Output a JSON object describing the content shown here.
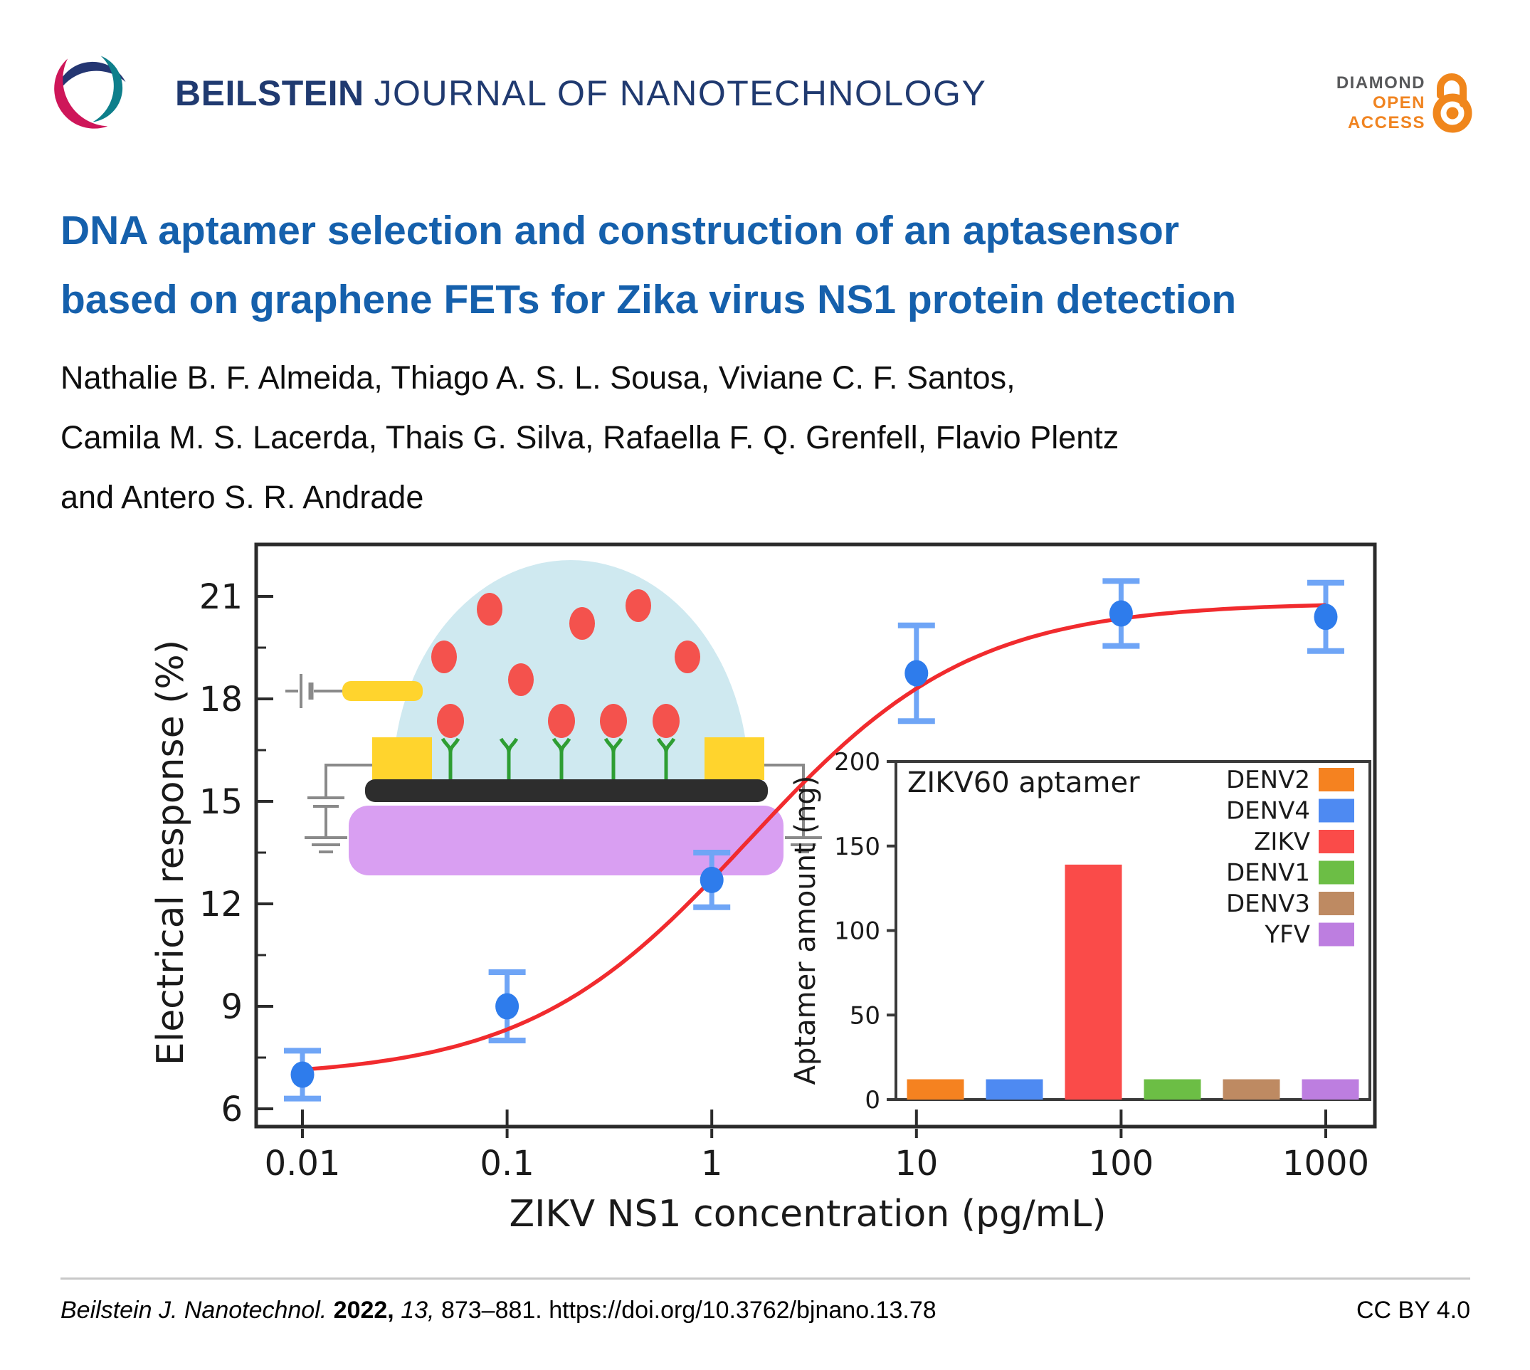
{
  "header": {
    "journal_name_bold": "BEILSTEIN",
    "journal_name_rest": "JOURNAL OF NANOTECHNOLOGY",
    "open_access_badge": {
      "line1": "DIAMOND",
      "line2": "OPEN",
      "line3": "ACCESS"
    }
  },
  "article": {
    "title_line1": "DNA aptamer selection and construction of an aptasensor",
    "title_line2": "based on graphene FETs for Zika virus NS1 protein detection",
    "authors": [
      "Nathalie B. F. Almeida, Thiago A. S. L. Sousa, Viviane C. F. Santos,",
      "Camila M. S. Lacerda, Thais G. Silva, Rafaella F. Q. Grenfell, Flavio Plentz",
      "and Antero S. R. Andrade"
    ]
  },
  "chart_data": [
    {
      "type": "scatter",
      "xlabel": "ZIKV NS1 concentration (pg/mL)",
      "ylabel": "Electrical response (%)",
      "x_scale": "log",
      "x": [
        0.01,
        0.1,
        1,
        10,
        100,
        1000
      ],
      "y": [
        7.0,
        9.0,
        12.7,
        18.75,
        20.5,
        20.4
      ],
      "yerr": [
        0.7,
        1.0,
        0.8,
        1.4,
        0.95,
        1.0
      ],
      "xticks": [
        0.01,
        0.1,
        1,
        10,
        100,
        1000
      ],
      "xtick_labels": [
        "0.01",
        "0.1",
        "1",
        "10",
        "100",
        "1000"
      ],
      "yticks": [
        6,
        9,
        12,
        15,
        18,
        21
      ],
      "ylim": [
        5.48,
        22.52
      ],
      "grid": false,
      "marker_color": "#2e7cec",
      "errorbar_color": "#6fa5f6",
      "fit_curve": {
        "type": "logistic",
        "bottom": 6.9,
        "top": 20.82,
        "log_ec50": 0.18,
        "hill": 0.8,
        "color": "#f12b2e"
      }
    },
    {
      "type": "bar",
      "title": "ZIKV60 aptamer",
      "ylabel": "Aptamer amount (ng)",
      "categories": [
        "DENV2",
        "DENV4",
        "ZIKV",
        "DENV1",
        "DENV3",
        "YFV"
      ],
      "values": [
        12,
        12,
        139,
        12,
        12,
        12
      ],
      "colors": [
        "#f58220",
        "#4e8af2",
        "#fa4b49",
        "#6cbe45",
        "#be8a62",
        "#bd7ee0"
      ],
      "yticks": [
        0,
        50,
        100,
        150,
        200
      ],
      "ylim": [
        0,
        200
      ],
      "legend_position": "top-right",
      "grid": false
    }
  ],
  "footer": {
    "citation": {
      "journal": "Beilstein J. Nanotechnol.",
      "year": "2022,",
      "volume": "13,",
      "pages": "873–881.",
      "doi": "https://doi.org/10.3762/bjnano.13.78"
    },
    "license": "CC BY 4.0"
  },
  "colors": {
    "title_blue": "#1560ac",
    "header_navy": "#203a70",
    "badge_orange": "#f08421",
    "badge_gray": "#58595b",
    "lock_orange": "#f0861c",
    "logo_navy": "#243672",
    "logo_teal": "#0e7f8b",
    "logo_crimson": "#ce1659",
    "droplet": "#cfe9f0",
    "protein_red": "#f4524d",
    "aptamer_green": "#2e9e33",
    "electrode_yellow": "#ffd42d",
    "graphene_black": "#2d2d2d",
    "substrate_purple": "#d99ff2",
    "wire_gray": "#8a8a8a",
    "rule_gray": "#c8c8c8"
  }
}
